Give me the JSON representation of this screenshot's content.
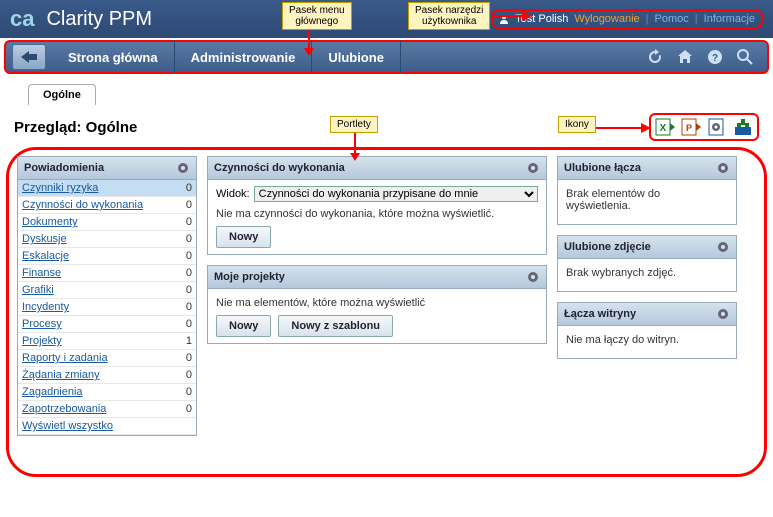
{
  "app": {
    "logo_ca": "ca",
    "name": "Clarity PPM"
  },
  "user": {
    "name": "Test Polish",
    "logout": "Wylogowanie",
    "help": "Pomoc",
    "info": "Informacje"
  },
  "nav": {
    "home": "Strona główna",
    "admin": "Administrowanie",
    "fav": "Ulubione"
  },
  "callouts": {
    "mainmenu": "Pasek menu\ngłównego",
    "usertool": "Pasek narzędzi\nużytkownika",
    "portlets": "Portlety",
    "icons": "Ikony"
  },
  "tab": "Ogólne",
  "page_title": "Przegląd: Ogólne",
  "notifications": {
    "title": "Powiadomienia",
    "items": [
      {
        "label": "Czynniki ryzyka",
        "count": 0,
        "sel": true
      },
      {
        "label": "Czynności do wykonania",
        "count": 0
      },
      {
        "label": "Dokumenty",
        "count": 0
      },
      {
        "label": "Dyskusje",
        "count": 0
      },
      {
        "label": "Eskalacje",
        "count": 0
      },
      {
        "label": "Finanse",
        "count": 0
      },
      {
        "label": "Grafiki",
        "count": 0
      },
      {
        "label": "Incydenty",
        "count": 0
      },
      {
        "label": "Procesy",
        "count": 0
      },
      {
        "label": "Projekty",
        "count": 1
      },
      {
        "label": "Raporty i zadania",
        "count": 0
      },
      {
        "label": "Żądania zmiany",
        "count": 0
      },
      {
        "label": "Zagadnienia",
        "count": 0
      },
      {
        "label": "Zapotrzebowania",
        "count": 0
      },
      {
        "label": "Wyświetl wszystko",
        "count": ""
      }
    ]
  },
  "actions": {
    "title": "Czynności do wykonania",
    "view_lbl": "Widok:",
    "view_opt": "Czynności do wykonania przypisane do mnie",
    "empty": "Nie ma czynności do wykonania, które można wyświetlić.",
    "new": "Nowy"
  },
  "projects": {
    "title": "Moje projekty",
    "empty": "Nie ma elementów, które można wyświetlić",
    "new": "Nowy",
    "tmpl": "Nowy z szablonu"
  },
  "favlinks": {
    "title": "Ulubione łącza",
    "empty": "Brak elementów do wyświetlenia."
  },
  "favimg": {
    "title": "Ulubione zdjęcie",
    "empty": "Brak wybranych zdjęć."
  },
  "sitelinks": {
    "title": "Łącza witryny",
    "empty": "Nie ma łączy do witryn."
  }
}
